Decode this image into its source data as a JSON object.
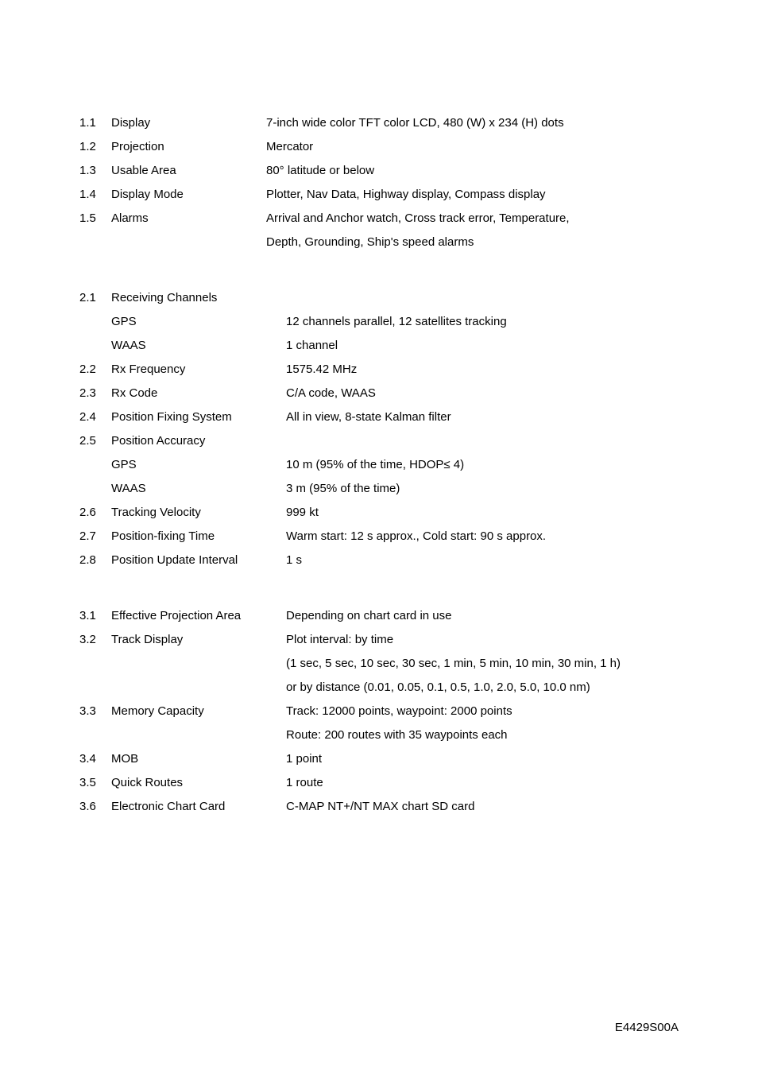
{
  "section1": {
    "rows": [
      {
        "num": "1.1",
        "label": "Display",
        "value": "7-inch wide color TFT color LCD, 480 (W) x 234 (H) dots"
      },
      {
        "num": "1.2",
        "label": "Projection",
        "value": "Mercator"
      },
      {
        "num": "1.3",
        "label": "Usable Area",
        "value": "80° latitude or below"
      },
      {
        "num": "1.4",
        "label": "Display Mode",
        "value": "Plotter, Nav Data, Highway display, Compass display"
      },
      {
        "num": "1.5",
        "label": "Alarms",
        "value": "Arrival and Anchor watch, Cross track error, Temperature,"
      }
    ],
    "continuation": "Depth, Grounding, Ship's speed alarms"
  },
  "section2": {
    "r1": {
      "num": "2.1",
      "label": "Receiving Channels"
    },
    "r1_sub": [
      {
        "label": "GPS",
        "value": "12 channels parallel, 12 satellites tracking"
      },
      {
        "label": "WAAS",
        "value": "1 channel"
      }
    ],
    "rows_a": [
      {
        "num": "2.2",
        "label": "Rx Frequency",
        "value": "1575.42 MHz"
      },
      {
        "num": "2.3",
        "label": "Rx Code",
        "value": "C/A code, WAAS"
      },
      {
        "num": "2.4",
        "label": "Position Fixing System",
        "value": "All in view, 8-state Kalman filter"
      }
    ],
    "r5": {
      "num": "2.5",
      "label": "Position Accuracy"
    },
    "r5_sub": [
      {
        "label": "GPS",
        "value": "10 m (95% of the time, HDOP≤ 4)"
      },
      {
        "label": "WAAS",
        "value": "3 m (95% of the time)"
      }
    ],
    "rows_b": [
      {
        "num": "2.6",
        "label": "Tracking Velocity",
        "value": "999 kt"
      },
      {
        "num": "2.7",
        "label": "Position-fixing Time",
        "value": "Warm start: 12 s approx., Cold start: 90 s approx."
      },
      {
        "num": "2.8",
        "label": "Position Update Interval",
        "value": "1 s"
      }
    ]
  },
  "section3": {
    "r1": {
      "num": "3.1",
      "label": "Effective Projection Area",
      "value": "Depending on chart card in use"
    },
    "r2": {
      "num": "3.2",
      "label": "Track Display",
      "value": "Plot interval: by time"
    },
    "r2_cont": [
      "(1 sec, 5 sec, 10 sec, 30 sec, 1 min, 5 min, 10 min, 30 min, 1 h)",
      "or by distance (0.01, 0.05, 0.1, 0.5, 1.0, 2.0, 5.0, 10.0 nm)"
    ],
    "r3": {
      "num": "3.3",
      "label": "Memory Capacity",
      "value": "Track: 12000 points, waypoint: 2000 points"
    },
    "r3_cont": "Route: 200 routes with 35 waypoints each",
    "rows_b": [
      {
        "num": "3.4",
        "label": "MOB",
        "value": "1 point"
      },
      {
        "num": "3.5",
        "label": "Quick Routes",
        "value": "1 route"
      },
      {
        "num": "3.6",
        "label": "Electronic Chart Card",
        "value": "C-MAP NT+/NT MAX chart SD card"
      }
    ]
  },
  "footer": "E4429S00A"
}
